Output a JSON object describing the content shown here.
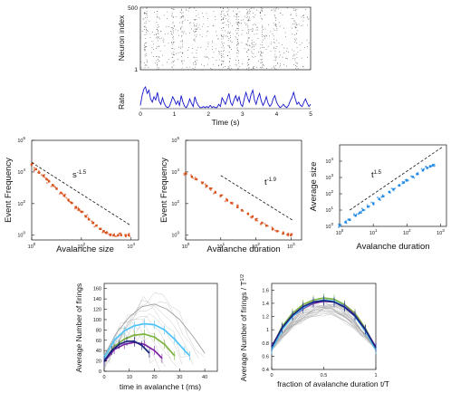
{
  "colors": {
    "raster": "#444444",
    "rate": "#1515c8",
    "powerlaw_points": "#d8501a",
    "size_duration_points": "#1e88e5",
    "fit_line": "#111111",
    "shape_gray": "#9e9e9e",
    "shape_green": "#7cb342",
    "shape_purple": "#7b1fa2",
    "shape_cyan": "#4fc3f7",
    "shape_blue": "#1a237e"
  },
  "chart_data": [
    {
      "id": "raster",
      "type": "scatter",
      "ylabel": "Neuron index",
      "yticks": [
        "500",
        "1"
      ],
      "ylim": [
        1,
        500
      ],
      "xlim": [
        0,
        5
      ],
      "burst_times_s": [
        0.15,
        0.5,
        0.95,
        1.2,
        1.6,
        2.4,
        2.6,
        2.85,
        3.15,
        3.3,
        3.55,
        3.95,
        4.55
      ]
    },
    {
      "id": "rate",
      "type": "line",
      "ylabel": "Rate",
      "xlabel": "Time (s)",
      "xticks": [
        "0",
        "1",
        "2",
        "3",
        "4",
        "5"
      ],
      "xlim": [
        0,
        5
      ],
      "x": [
        0.0,
        0.05,
        0.1,
        0.15,
        0.2,
        0.25,
        0.3,
        0.35,
        0.4,
        0.45,
        0.5,
        0.55,
        0.6,
        0.65,
        0.7,
        0.75,
        0.8,
        0.85,
        0.9,
        0.95,
        1.0,
        1.05,
        1.1,
        1.15,
        1.2,
        1.25,
        1.3,
        1.35,
        1.4,
        1.45,
        1.5,
        1.55,
        1.6,
        1.65,
        1.7,
        1.75,
        1.8,
        1.85,
        1.9,
        1.95,
        2.0,
        2.05,
        2.1,
        2.15,
        2.2,
        2.25,
        2.3,
        2.35,
        2.4,
        2.45,
        2.5,
        2.55,
        2.6,
        2.65,
        2.7,
        2.75,
        2.8,
        2.85,
        2.9,
        2.95,
        3.0,
        3.05,
        3.1,
        3.15,
        3.2,
        3.25,
        3.3,
        3.35,
        3.4,
        3.45,
        3.5,
        3.55,
        3.6,
        3.65,
        3.7,
        3.75,
        3.8,
        3.85,
        3.9,
        3.95,
        4.0,
        4.05,
        4.1,
        4.15,
        4.2,
        4.25,
        4.3,
        4.35,
        4.4,
        4.45,
        4.5,
        4.55,
        4.6,
        4.65,
        4.7,
        4.75,
        4.8,
        4.85,
        4.9,
        4.95,
        5.0
      ],
      "values": [
        0.15,
        0.6,
        0.9,
        1.0,
        0.7,
        0.85,
        0.45,
        0.3,
        0.55,
        0.4,
        0.75,
        0.35,
        0.2,
        0.5,
        0.25,
        0.1,
        0.05,
        0.1,
        0.3,
        0.55,
        0.4,
        0.2,
        0.35,
        0.15,
        0.6,
        0.3,
        0.1,
        0.05,
        0.2,
        0.45,
        0.25,
        0.1,
        0.55,
        0.3,
        0.15,
        0.05,
        0.05,
        0.1,
        0.05,
        0.1,
        0.05,
        0.15,
        0.05,
        0.1,
        0.05,
        0.05,
        0.2,
        0.1,
        0.5,
        0.35,
        0.2,
        0.45,
        0.7,
        0.3,
        0.15,
        0.4,
        0.6,
        0.35,
        0.55,
        0.2,
        0.1,
        0.45,
        0.75,
        0.5,
        0.3,
        0.65,
        0.85,
        0.4,
        0.2,
        0.5,
        0.7,
        0.35,
        0.15,
        0.3,
        0.55,
        0.25,
        0.1,
        0.2,
        0.45,
        0.6,
        0.3,
        0.15,
        0.05,
        0.1,
        0.2,
        0.1,
        0.05,
        0.15,
        0.35,
        0.5,
        0.75,
        0.45,
        0.2,
        0.3,
        0.15,
        0.1,
        0.3,
        0.45,
        0.25,
        0.1,
        0.2
      ]
    },
    {
      "id": "size_distribution",
      "type": "scatter",
      "xlabel": "Avalanche size",
      "ylabel": "Event Frequency",
      "xlog": true,
      "ylog": true,
      "xlim": [
        1,
        20000
      ],
      "ylim": [
        0.5,
        1000000
      ],
      "xticks": [
        "10",
        "10",
        "10"
      ],
      "xtick_exp": [
        "0",
        "2",
        "4"
      ],
      "yticks": [
        "10",
        "10",
        "10",
        "10"
      ],
      "ytick_exp": [
        "0",
        "2",
        "4",
        "6"
      ],
      "fit": {
        "label": "s",
        "exponent": "-1.5",
        "x": [
          1,
          10000
        ],
        "y": [
          40000,
          4
        ]
      },
      "points": {
        "x": [
          1,
          1.5,
          2,
          3,
          4,
          5,
          7,
          10,
          15,
          20,
          30,
          40,
          60,
          80,
          100,
          150,
          200,
          300,
          400,
          600,
          800,
          1000,
          1500,
          2000,
          3000,
          4000,
          6000,
          8000
        ],
        "y": [
          30000,
          15000,
          9000,
          5500,
          3500,
          2500,
          1500,
          900,
          480,
          320,
          175,
          110,
          60,
          42,
          30,
          15,
          10,
          6,
          4,
          2.5,
          1.8,
          1.4,
          1.1,
          1.0,
          1.0,
          1.0,
          1.0,
          1.0
        ]
      }
    },
    {
      "id": "duration_distribution",
      "type": "scatter",
      "xlabel": "Avalanche duration",
      "ylabel": "Event Frequency",
      "xlog": true,
      "ylog": true,
      "xlim": [
        1,
        2000
      ],
      "ylim": [
        0.5,
        1000000
      ],
      "xticks": [
        "10",
        "10",
        "10",
        "10"
      ],
      "xtick_exp": [
        "0",
        "1",
        "2",
        "3"
      ],
      "yticks": [
        "10",
        "10",
        "10",
        "10"
      ],
      "ytick_exp": [
        "0",
        "2",
        "4",
        "6"
      ],
      "fit": {
        "label": "t",
        "exponent": "-1.9",
        "x": [
          10,
          1200
        ],
        "y": [
          6000,
          8
        ]
      },
      "points": {
        "x": [
          1,
          1.5,
          2,
          3,
          4,
          5,
          7,
          10,
          15,
          20,
          30,
          40,
          60,
          80,
          100,
          150,
          200,
          300,
          400,
          600,
          800,
          1000
        ],
        "y": [
          8000,
          5000,
          3500,
          2000,
          1300,
          900,
          500,
          320,
          170,
          110,
          60,
          38,
          22,
          15,
          10,
          6,
          4,
          2.5,
          1.8,
          1.3,
          1.1,
          1.0
        ]
      }
    },
    {
      "id": "size_vs_duration",
      "type": "scatter",
      "xlabel": "Avalanche duration",
      "ylabel": "Average size",
      "xlog": true,
      "ylog": true,
      "xlim": [
        1,
        1500
      ],
      "ylim": [
        1,
        100000
      ],
      "xticks": [
        "10",
        "10",
        "10",
        "10"
      ],
      "xtick_exp": [
        "0",
        "1",
        "2",
        "3"
      ],
      "yticks": [
        "10",
        "10",
        "10",
        "10",
        "10"
      ],
      "ytick_exp": [
        "0",
        "1",
        "2",
        "3",
        "4"
      ],
      "fit": {
        "label": "t",
        "exponent": "1.5",
        "x": [
          2,
          1200
        ],
        "y": [
          10,
          80000
        ]
      },
      "points": {
        "x": [
          1,
          1.5,
          2,
          3,
          4,
          5,
          7,
          10,
          15,
          20,
          30,
          40,
          60,
          80,
          100,
          150,
          200,
          300,
          400,
          500,
          600
        ],
        "y": [
          1.1,
          1.8,
          2.5,
          4.5,
          7,
          10,
          16,
          26,
          48,
          70,
          130,
          190,
          330,
          480,
          650,
          1100,
          1600,
          2700,
          3800,
          4800,
          5800
        ]
      }
    },
    {
      "id": "avalanche_shape",
      "type": "line",
      "xlabel": "time in avalanche t (ms)",
      "ylabel": "Average Number of firings",
      "xlim": [
        0,
        45
      ],
      "ylim": [
        0,
        170
      ],
      "xticks": [
        "0",
        "10",
        "20",
        "30",
        "40"
      ],
      "yticks": [
        "0",
        "20",
        "40",
        "60",
        "80",
        "100",
        "120",
        "140",
        "160"
      ],
      "series": [
        {
          "color_key": "shape_gray",
          "x": [
            0,
            5,
            10,
            15,
            20,
            25,
            30,
            35,
            40
          ],
          "values": [
            30,
            75,
            105,
            125,
            130,
            120,
            100,
            70,
            35
          ]
        },
        {
          "color_key": "shape_green",
          "x": [
            0,
            4,
            8,
            12,
            16,
            20,
            24,
            28
          ],
          "values": [
            20,
            48,
            62,
            70,
            72,
            66,
            52,
            30
          ]
        },
        {
          "color_key": "shape_purple",
          "x": [
            0,
            4,
            8,
            12,
            16,
            20,
            23
          ],
          "values": [
            18,
            42,
            52,
            56,
            52,
            40,
            25
          ]
        },
        {
          "color_key": "shape_cyan",
          "x": [
            0,
            4,
            8,
            12,
            16,
            20,
            24,
            28,
            32,
            34
          ],
          "values": [
            25,
            60,
            78,
            88,
            92,
            90,
            80,
            62,
            40,
            30
          ]
        },
        {
          "color_key": "shape_blue",
          "x": [
            0,
            3,
            6,
            9,
            12,
            15,
            18
          ],
          "values": [
            20,
            40,
            52,
            58,
            58,
            50,
            35
          ]
        }
      ]
    },
    {
      "id": "shape_collapse",
      "type": "line",
      "xlabel": "fraction of avalanche duration  t/T",
      "ylabel": "Average Number of firings / T",
      "ylabel_exp": "1/2",
      "xlim": [
        0,
        1
      ],
      "ylim": [
        0.4,
        1.7
      ],
      "xticks": [
        "0",
        "0.5",
        "1"
      ],
      "yticks": [
        "0.4",
        "0.6",
        "0.8",
        "1",
        "1.2",
        "1.4",
        "1.6"
      ],
      "series": [
        {
          "color_key": "shape_green",
          "x": [
            0,
            0.1,
            0.2,
            0.3,
            0.4,
            0.5,
            0.6,
            0.7,
            0.8,
            0.9,
            1.0
          ],
          "values": [
            0.72,
            1.05,
            1.25,
            1.38,
            1.45,
            1.48,
            1.46,
            1.38,
            1.25,
            1.02,
            0.72
          ]
        },
        {
          "color_key": "shape_purple",
          "x": [
            0,
            0.1,
            0.2,
            0.3,
            0.4,
            0.5,
            0.6,
            0.7,
            0.8,
            0.9,
            1.0
          ],
          "values": [
            0.75,
            1.02,
            1.2,
            1.32,
            1.4,
            1.43,
            1.42,
            1.36,
            1.22,
            1.0,
            0.74
          ]
        },
        {
          "color_key": "shape_cyan",
          "x": [
            0,
            0.1,
            0.2,
            0.3,
            0.4,
            0.5,
            0.6,
            0.7,
            0.8,
            0.9,
            1.0
          ],
          "values": [
            0.7,
            1.0,
            1.2,
            1.33,
            1.42,
            1.45,
            1.43,
            1.35,
            1.2,
            0.98,
            0.7
          ]
        },
        {
          "color_key": "shape_blue",
          "x": [
            0,
            0.1,
            0.2,
            0.3,
            0.4,
            0.5,
            0.6,
            0.7,
            0.8,
            0.9,
            1.0
          ],
          "values": [
            0.74,
            1.03,
            1.22,
            1.35,
            1.42,
            1.44,
            1.42,
            1.34,
            1.21,
            1.0,
            0.73
          ]
        }
      ]
    }
  ]
}
